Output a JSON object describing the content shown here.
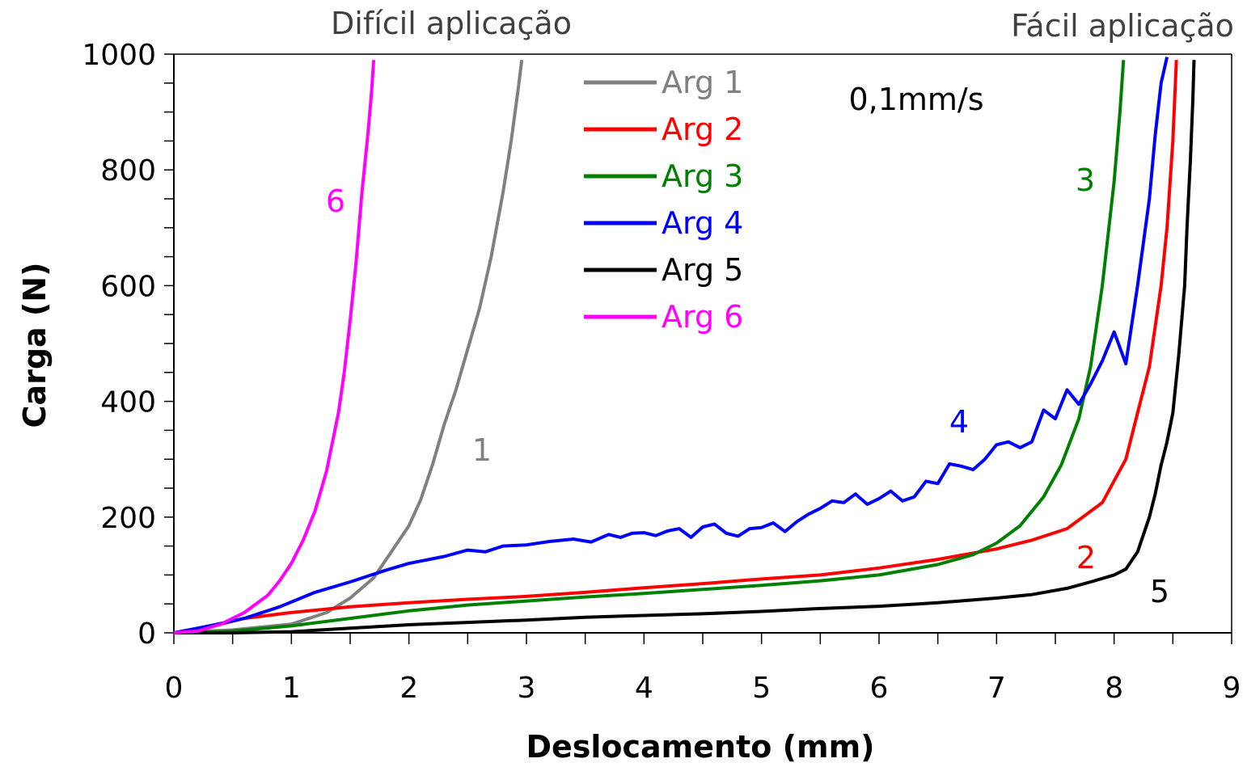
{
  "chart_data": {
    "type": "line",
    "xlabel": "Deslocamento (mm)",
    "ylabel": "Carga (N)",
    "xlim": [
      0,
      9
    ],
    "ylim": [
      0,
      1000
    ],
    "x_ticks": [
      0,
      1,
      2,
      3,
      4,
      5,
      6,
      7,
      8,
      9
    ],
    "y_ticks": [
      0,
      200,
      400,
      600,
      800,
      1000
    ],
    "grid": false,
    "legend_position": "top-center",
    "annotations": {
      "hard": "Difícil aplicação",
      "easy": "Fácil aplicação",
      "rate": "0,1mm/s"
    },
    "series": [
      {
        "name": "Arg 1",
        "color": "#808080",
        "curve_label": "1",
        "x": [
          0,
          0.5,
          1.0,
          1.3,
          1.5,
          1.7,
          1.85,
          2.0,
          2.1,
          2.2,
          2.3,
          2.4,
          2.5,
          2.6,
          2.7,
          2.8,
          2.87,
          2.93,
          2.96
        ],
        "y": [
          0,
          5,
          15,
          35,
          60,
          95,
          140,
          185,
          230,
          290,
          360,
          420,
          490,
          560,
          650,
          760,
          850,
          940,
          990
        ]
      },
      {
        "name": "Arg 2",
        "color": "#ff0000",
        "curve_label": "2",
        "x": [
          0,
          0.3,
          0.6,
          1.0,
          1.5,
          2.0,
          2.5,
          3.0,
          3.5,
          4.0,
          4.5,
          5.0,
          5.5,
          6.0,
          6.5,
          7.0,
          7.3,
          7.6,
          7.9,
          8.1,
          8.2,
          8.3,
          8.4,
          8.45,
          8.5,
          8.53
        ],
        "y": [
          0,
          10,
          25,
          35,
          45,
          52,
          58,
          63,
          70,
          78,
          85,
          93,
          100,
          112,
          127,
          145,
          160,
          180,
          225,
          300,
          380,
          460,
          600,
          700,
          850,
          990
        ]
      },
      {
        "name": "Arg 3",
        "color": "#008000",
        "curve_label": "3",
        "x": [
          0,
          0.5,
          1.0,
          1.5,
          2.0,
          2.5,
          3.0,
          3.5,
          4.0,
          4.5,
          5.0,
          5.5,
          6.0,
          6.5,
          6.8,
          7.0,
          7.2,
          7.4,
          7.55,
          7.7,
          7.8,
          7.9,
          8.0,
          8.05,
          8.08
        ],
        "y": [
          0,
          3,
          12,
          25,
          38,
          48,
          55,
          62,
          68,
          75,
          82,
          90,
          100,
          118,
          135,
          155,
          185,
          235,
          290,
          370,
          460,
          600,
          780,
          900,
          990
        ]
      },
      {
        "name": "Arg 4",
        "color": "#0000ff",
        "curve_label": "4",
        "x": [
          0,
          0.3,
          0.6,
          0.9,
          1.2,
          1.5,
          1.8,
          2.0,
          2.3,
          2.5,
          2.65,
          2.8,
          3.0,
          3.2,
          3.4,
          3.55,
          3.7,
          3.8,
          3.9,
          4.0,
          4.1,
          4.2,
          4.3,
          4.4,
          4.5,
          4.6,
          4.7,
          4.8,
          4.9,
          5.0,
          5.1,
          5.2,
          5.3,
          5.4,
          5.5,
          5.6,
          5.7,
          5.8,
          5.9,
          6.0,
          6.1,
          6.2,
          6.3,
          6.4,
          6.5,
          6.6,
          6.7,
          6.8,
          6.9,
          7.0,
          7.1,
          7.2,
          7.3,
          7.4,
          7.5,
          7.6,
          7.7,
          7.8,
          7.9,
          8.0,
          8.1,
          8.2,
          8.3,
          8.35,
          8.4,
          8.45
        ],
        "y": [
          0,
          12,
          25,
          45,
          70,
          88,
          108,
          120,
          132,
          143,
          140,
          150,
          152,
          158,
          162,
          157,
          170,
          165,
          172,
          173,
          168,
          176,
          180,
          165,
          183,
          188,
          172,
          167,
          180,
          182,
          190,
          175,
          192,
          205,
          215,
          228,
          225,
          240,
          222,
          232,
          245,
          228,
          235,
          262,
          258,
          292,
          288,
          282,
          300,
          325,
          330,
          320,
          330,
          385,
          370,
          420,
          395,
          430,
          470,
          520,
          465,
          600,
          750,
          860,
          950,
          995
        ]
      },
      {
        "name": "Arg 5",
        "color": "#000000",
        "curve_label": "5",
        "x": [
          0,
          0.5,
          1.0,
          1.5,
          2.0,
          2.5,
          3.0,
          3.5,
          4.0,
          4.5,
          5.0,
          5.5,
          6.0,
          6.5,
          7.0,
          7.3,
          7.6,
          7.8,
          8.0,
          8.1,
          8.2,
          8.3,
          8.35,
          8.4,
          8.45,
          8.5,
          8.55,
          8.6,
          8.62,
          8.65,
          8.67,
          8.68
        ],
        "y": [
          0,
          0,
          2,
          8,
          14,
          18,
          22,
          27,
          30,
          33,
          37,
          42,
          46,
          52,
          60,
          66,
          77,
          88,
          100,
          110,
          140,
          200,
          240,
          290,
          330,
          380,
          480,
          600,
          700,
          820,
          920,
          990
        ]
      },
      {
        "name": "Arg 6",
        "color": "#ff00ff",
        "curve_label": "6",
        "x": [
          0,
          0.2,
          0.4,
          0.6,
          0.8,
          0.9,
          1.0,
          1.1,
          1.2,
          1.3,
          1.4,
          1.45,
          1.5,
          1.55,
          1.6,
          1.65,
          1.68,
          1.7
        ],
        "y": [
          0,
          3,
          15,
          35,
          65,
          90,
          120,
          160,
          210,
          280,
          380,
          450,
          540,
          640,
          760,
          860,
          930,
          990
        ]
      }
    ]
  }
}
